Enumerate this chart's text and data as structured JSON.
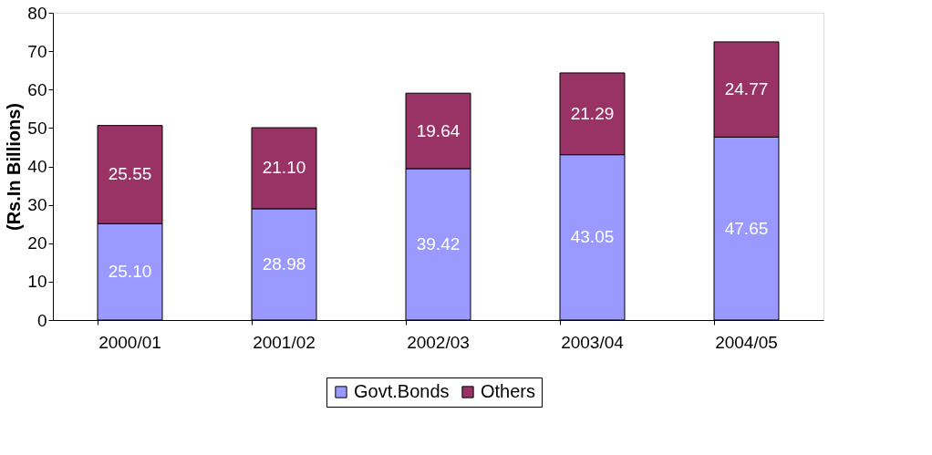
{
  "chart_data": {
    "type": "bar",
    "stacked": true,
    "ylabel": "(Rs.In Billions)",
    "categories": [
      "2000/01",
      "2001/02",
      "2002/03",
      "2003/04",
      "2004/05"
    ],
    "series": [
      {
        "name": "Govt.Bonds",
        "color": "#9999ff",
        "values": [
          25.1,
          28.98,
          39.42,
          43.05,
          47.65
        ],
        "value_labels": [
          "25.10",
          "28.98",
          "39.42",
          "43.05",
          "47.65"
        ]
      },
      {
        "name": "Others",
        "color": "#993366",
        "values": [
          25.55,
          21.1,
          19.64,
          21.29,
          24.77
        ],
        "value_labels": [
          "25.55",
          "21.10",
          "19.64",
          "21.29",
          "24.77"
        ]
      }
    ],
    "ylim": [
      0,
      80
    ],
    "yticks": [
      0,
      10,
      20,
      30,
      40,
      50,
      60,
      70,
      80
    ],
    "grid": false,
    "legend": "bottom"
  }
}
